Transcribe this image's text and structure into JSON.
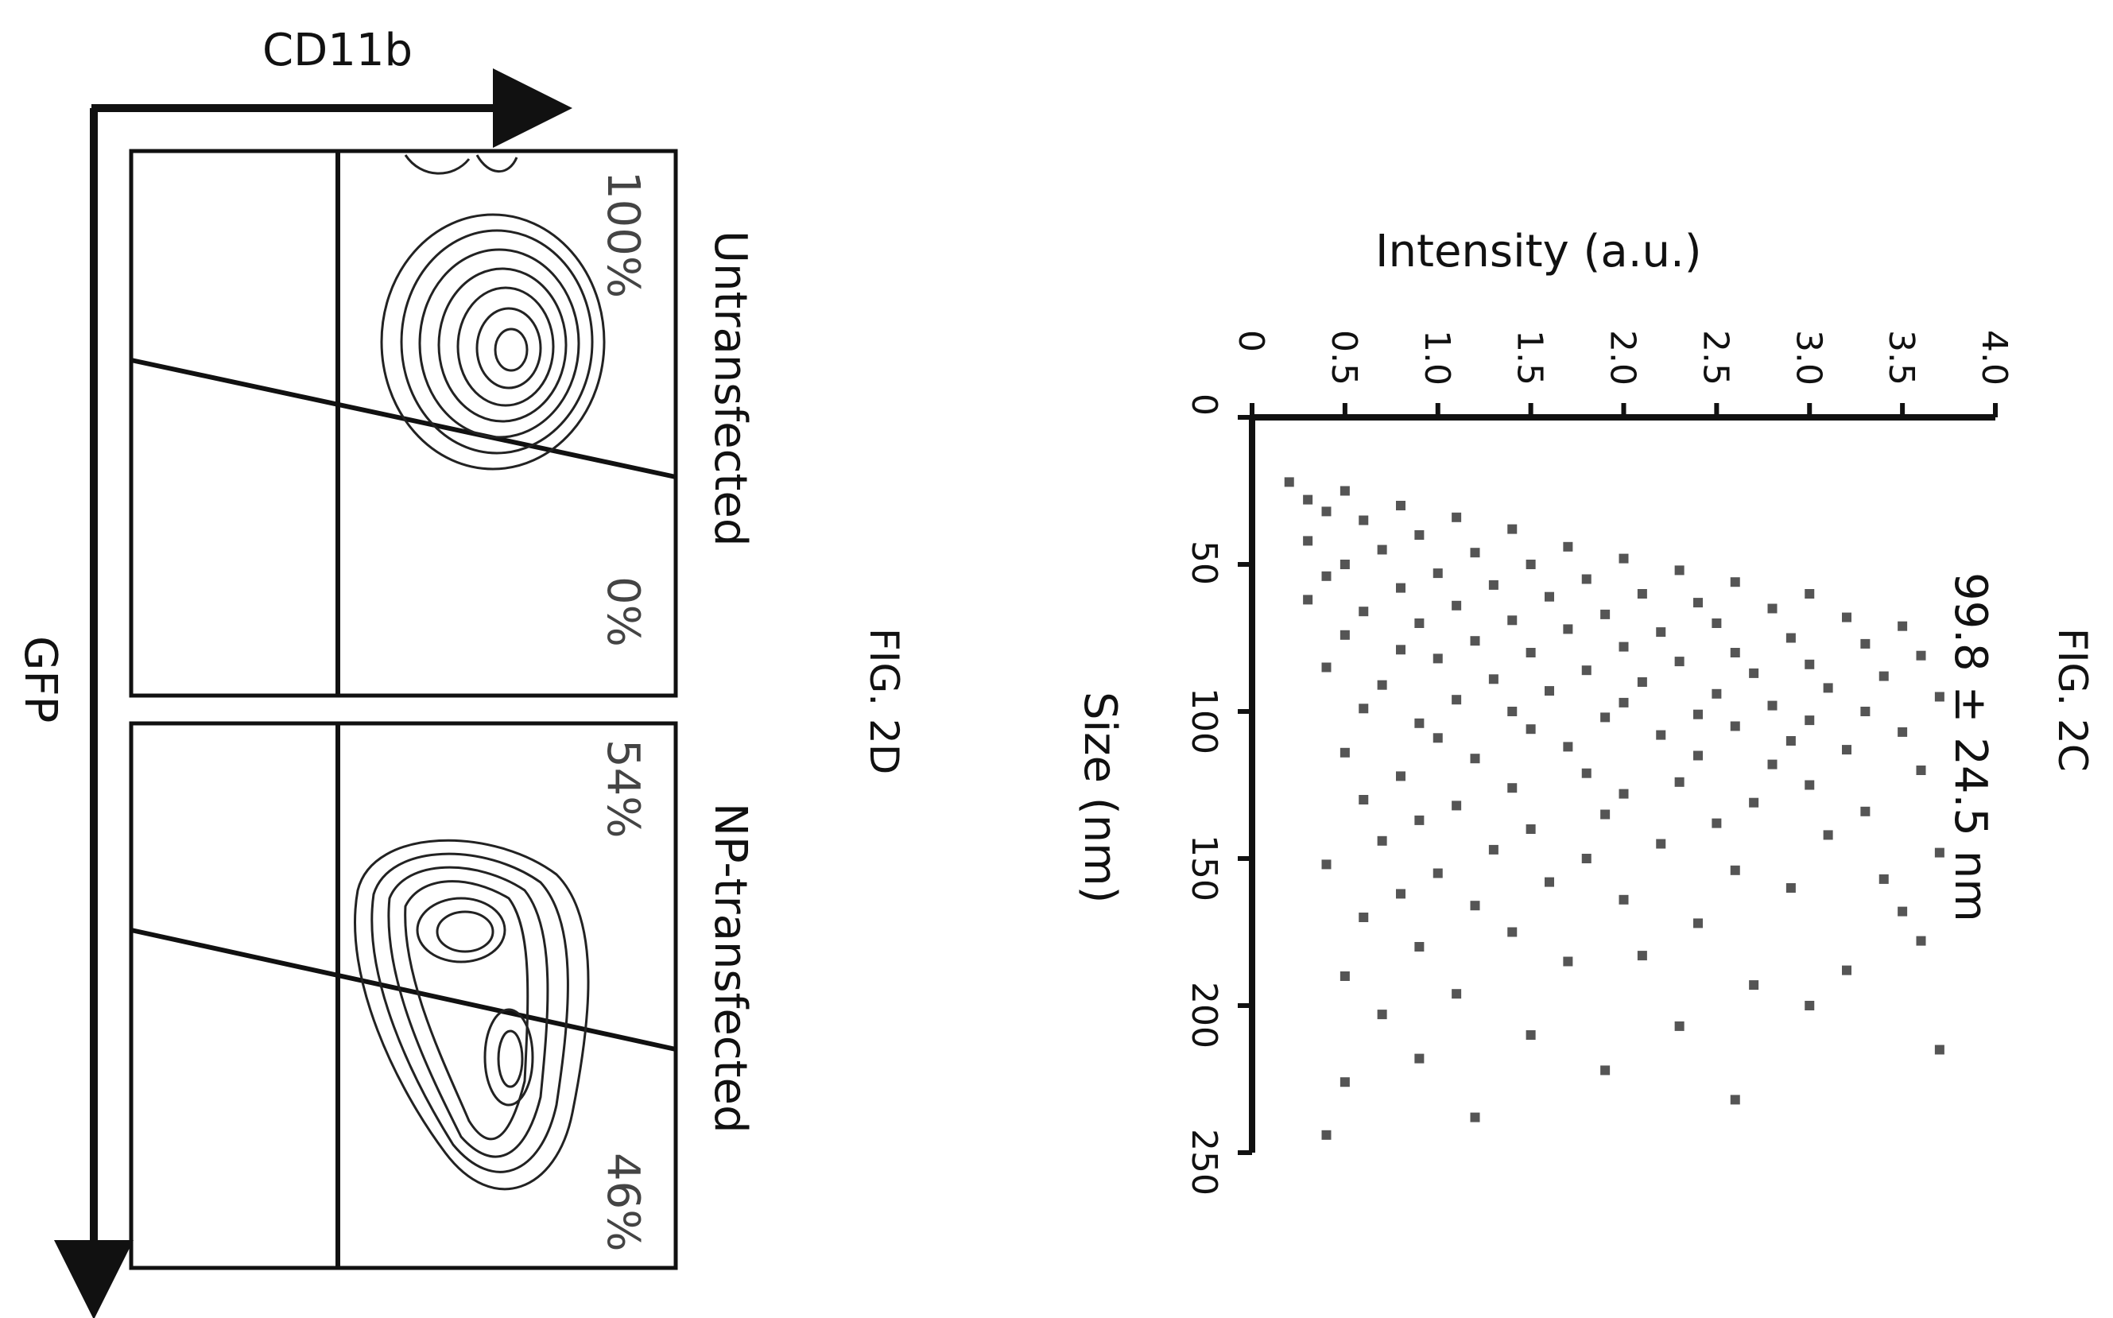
{
  "figure_2d": {
    "fig_label": "FIG. 2D",
    "x_axis_label": "CD11b",
    "y_axis_label": "GFP",
    "panels": [
      {
        "title": "Untransfected",
        "upper_percent": "100%",
        "lower_percent": "0%"
      },
      {
        "title": "NP-transfected",
        "upper_percent": "54%",
        "lower_percent": "46%"
      }
    ]
  },
  "figure_2c": {
    "fig_label": "FIG. 2C",
    "annotation": "99.8 ± 24.5 nm",
    "x_label": "Size (nm)",
    "y_label": "Intensity (a.u.)"
  },
  "chart_data": [
    {
      "type": "scatter",
      "title": "",
      "xlabel": "Size (nm)",
      "ylabel": "Intensity (a.u.)",
      "xlim": [
        0,
        250
      ],
      "ylim": [
        0,
        4.0
      ],
      "x_ticks": [
        "0",
        "50",
        "100",
        "150",
        "200",
        "250"
      ],
      "y_ticks": [
        "0",
        "0.5",
        "1.0",
        "1.5",
        "2.0",
        "2.5",
        "3.0",
        "3.5",
        "4.0"
      ],
      "annotation": "99.8 ± 24.5 nm",
      "series": [
        {
          "points": [
            [
              22,
              0.2
            ],
            [
              25,
              0.5
            ],
            [
              28,
              0.3
            ],
            [
              30,
              0.8
            ],
            [
              32,
              0.4
            ],
            [
              34,
              1.1
            ],
            [
              35,
              0.6
            ],
            [
              38,
              1.4
            ],
            [
              40,
              0.9
            ],
            [
              42,
              0.3
            ],
            [
              44,
              1.7
            ],
            [
              45,
              0.7
            ],
            [
              46,
              1.2
            ],
            [
              48,
              2.0
            ],
            [
              50,
              0.5
            ],
            [
              50,
              1.5
            ],
            [
              52,
              2.3
            ],
            [
              53,
              1.0
            ],
            [
              54,
              0.4
            ],
            [
              55,
              1.8
            ],
            [
              56,
              2.6
            ],
            [
              57,
              1.3
            ],
            [
              58,
              0.8
            ],
            [
              60,
              2.1
            ],
            [
              60,
              3.0
            ],
            [
              61,
              1.6
            ],
            [
              62,
              0.3
            ],
            [
              63,
              2.4
            ],
            [
              64,
              1.1
            ],
            [
              65,
              2.8
            ],
            [
              66,
              0.6
            ],
            [
              67,
              1.9
            ],
            [
              68,
              3.2
            ],
            [
              69,
              1.4
            ],
            [
              70,
              2.5
            ],
            [
              70,
              0.9
            ],
            [
              71,
              3.5
            ],
            [
              72,
              1.7
            ],
            [
              73,
              2.2
            ],
            [
              74,
              0.5
            ],
            [
              75,
              2.9
            ],
            [
              76,
              1.2
            ],
            [
              77,
              3.3
            ],
            [
              78,
              2.0
            ],
            [
              79,
              0.8
            ],
            [
              80,
              2.6
            ],
            [
              80,
              1.5
            ],
            [
              81,
              3.6
            ],
            [
              82,
              1.0
            ],
            [
              83,
              2.3
            ],
            [
              84,
              3.0
            ],
            [
              85,
              0.4
            ],
            [
              86,
              1.8
            ],
            [
              87,
              2.7
            ],
            [
              88,
              3.4
            ],
            [
              89,
              1.3
            ],
            [
              90,
              2.1
            ],
            [
              91,
              0.7
            ],
            [
              92,
              3.1
            ],
            [
              93,
              1.6
            ],
            [
              94,
              2.5
            ],
            [
              95,
              3.7
            ],
            [
              96,
              1.1
            ],
            [
              97,
              2.0
            ],
            [
              98,
              2.8
            ],
            [
              99,
              0.6
            ],
            [
              100,
              1.4
            ],
            [
              100,
              3.3
            ],
            [
              101,
              2.4
            ],
            [
              102,
              1.9
            ],
            [
              103,
              3.0
            ],
            [
              104,
              0.9
            ],
            [
              105,
              2.6
            ],
            [
              106,
              1.5
            ],
            [
              107,
              3.5
            ],
            [
              108,
              2.2
            ],
            [
              109,
              1.0
            ],
            [
              110,
              2.9
            ],
            [
              112,
              1.7
            ],
            [
              113,
              3.2
            ],
            [
              114,
              0.5
            ],
            [
              115,
              2.4
            ],
            [
              116,
              1.2
            ],
            [
              118,
              2.8
            ],
            [
              120,
              3.6
            ],
            [
              121,
              1.8
            ],
            [
              122,
              0.8
            ],
            [
              124,
              2.3
            ],
            [
              125,
              3.0
            ],
            [
              126,
              1.4
            ],
            [
              128,
              2.0
            ],
            [
              130,
              0.6
            ],
            [
              131,
              2.7
            ],
            [
              132,
              1.1
            ],
            [
              134,
              3.3
            ],
            [
              135,
              1.9
            ],
            [
              137,
              0.9
            ],
            [
              138,
              2.5
            ],
            [
              140,
              1.5
            ],
            [
              142,
              3.1
            ],
            [
              144,
              0.7
            ],
            [
              145,
              2.2
            ],
            [
              147,
              1.3
            ],
            [
              148,
              3.7
            ],
            [
              150,
              1.8
            ],
            [
              152,
              0.4
            ],
            [
              154,
              2.6
            ],
            [
              155,
              1.0
            ],
            [
              157,
              3.4
            ],
            [
              158,
              1.6
            ],
            [
              160,
              2.9
            ],
            [
              162,
              0.8
            ],
            [
              164,
              2.0
            ],
            [
              166,
              1.2
            ],
            [
              168,
              3.5
            ],
            [
              170,
              0.6
            ],
            [
              172,
              2.4
            ],
            [
              175,
              1.4
            ],
            [
              178,
              3.6
            ],
            [
              180,
              0.9
            ],
            [
              183,
              2.1
            ],
            [
              185,
              1.7
            ],
            [
              188,
              3.2
            ],
            [
              190,
              0.5
            ],
            [
              193,
              2.7
            ],
            [
              196,
              1.1
            ],
            [
              200,
              3.0
            ],
            [
              203,
              0.7
            ],
            [
              207,
              2.3
            ],
            [
              210,
              1.5
            ],
            [
              215,
              3.7
            ],
            [
              218,
              0.9
            ],
            [
              222,
              1.9
            ],
            [
              226,
              0.5
            ],
            [
              232,
              2.6
            ],
            [
              238,
              1.2
            ],
            [
              244,
              0.4
            ]
          ]
        }
      ]
    }
  ]
}
